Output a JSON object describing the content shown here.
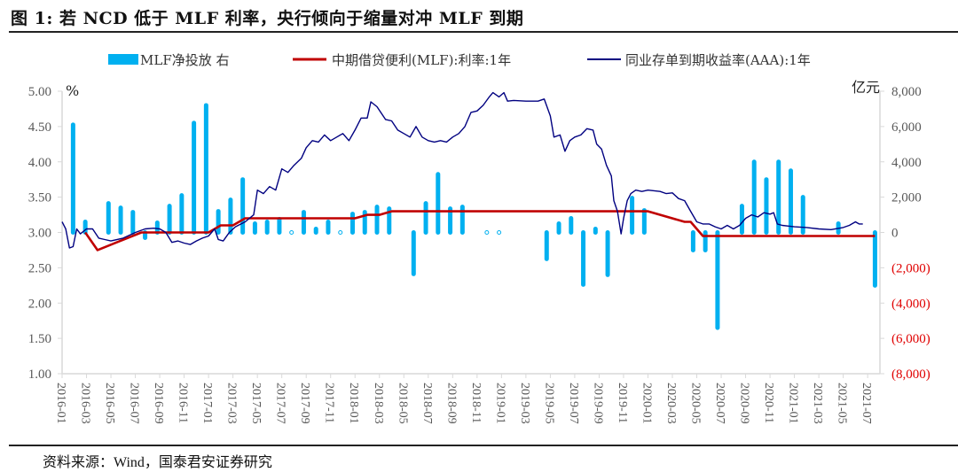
{
  "figure": {
    "title": "图 1: 若 NCD 低于 MLF 利率，央行倾向于缩量对冲 MLF 到期",
    "source": "资料来源：Wind，国泰君安证券研究"
  },
  "chart_data": {
    "type": "bar+line",
    "title": "若 NCD 低于 MLF 利率，央行倾向于缩量对冲 MLF 到期",
    "legend": [
      {
        "name": "MLF净投放 右",
        "type": "bar",
        "color": "#00b0f0"
      },
      {
        "name": "中期借贷便利(MLF):利率:1年",
        "type": "line",
        "color": "#c00000"
      },
      {
        "name": "同业存单到期收益率(AAA):1年",
        "type": "line",
        "color": "#000080"
      }
    ],
    "legend_position": "top",
    "y_left": {
      "label": "%",
      "range": [
        1.0,
        5.0
      ],
      "ticks": [
        "5.00",
        "4.50",
        "4.00",
        "3.50",
        "3.00",
        "2.50",
        "2.00",
        "1.50",
        "1.00"
      ]
    },
    "y_right": {
      "label": "亿元",
      "range": [
        -8000,
        8000
      ],
      "ticks": [
        "8,000",
        "6,000",
        "4,000",
        "2,000",
        "0",
        "(2,000)",
        "(4,000)",
        "(6,000)",
        "(8,000)"
      ],
      "negative_color": "#e00000"
    },
    "x_ticks": [
      "2016-01",
      "2016-03",
      "2016-05",
      "2016-07",
      "2016-09",
      "2016-11",
      "2017-01",
      "2017-03",
      "2017-05",
      "2017-07",
      "2017-09",
      "2017-11",
      "2018-01",
      "2018-03",
      "2018-05",
      "2018-07",
      "2018-09",
      "2018-11",
      "2019-01",
      "2019-03",
      "2019-05",
      "2019-07",
      "2019-09",
      "2019-11",
      "2020-01",
      "2020-03",
      "2020-05",
      "2020-07",
      "2020-09",
      "2020-11",
      "2021-01",
      "2021-03",
      "2021-05",
      "2021-07"
    ],
    "x_start": "2016-01",
    "series": [
      {
        "name": "MLF净投放 右",
        "axis": "right",
        "points": [
          [
            0.9,
            6100
          ],
          [
            1.9,
            600
          ],
          [
            3.8,
            1650
          ],
          [
            4.8,
            1400
          ],
          [
            5.8,
            1150
          ],
          [
            6.8,
            -300
          ],
          [
            7.8,
            550
          ],
          [
            8.8,
            1500
          ],
          [
            9.8,
            2100
          ],
          [
            10.8,
            6200
          ],
          [
            11.8,
            7200
          ],
          [
            12.8,
            1200
          ],
          [
            13.8,
            1850
          ],
          [
            14.8,
            3000
          ],
          [
            15.8,
            500
          ],
          [
            16.8,
            600
          ],
          [
            17.8,
            750
          ],
          [
            18.8,
            0
          ],
          [
            19.8,
            1150
          ],
          [
            20.8,
            200
          ],
          [
            21.8,
            600
          ],
          [
            22.8,
            0
          ],
          [
            23.8,
            1050
          ],
          [
            24.8,
            1150
          ],
          [
            25.8,
            1450
          ],
          [
            26.8,
            1350
          ],
          [
            28.8,
            -2350
          ],
          [
            29.8,
            1650
          ],
          [
            30.8,
            3300
          ],
          [
            31.8,
            1350
          ],
          [
            32.8,
            1450
          ],
          [
            34.8,
            0
          ],
          [
            35.8,
            0
          ],
          [
            39.7,
            -1500
          ],
          [
            40.7,
            500
          ],
          [
            41.7,
            800
          ],
          [
            42.7,
            -2950
          ],
          [
            43.7,
            200
          ],
          [
            44.7,
            -2400
          ],
          [
            46.7,
            1950
          ],
          [
            47.7,
            1250
          ],
          [
            51.7,
            -1000
          ],
          [
            52.7,
            -1000
          ],
          [
            53.7,
            -5400
          ],
          [
            55.7,
            1500
          ],
          [
            56.7,
            4000
          ],
          [
            57.7,
            3000
          ],
          [
            58.7,
            4000
          ],
          [
            59.7,
            3500
          ],
          [
            60.7,
            2000
          ],
          [
            63.6,
            500
          ],
          [
            66.6,
            -3000
          ]
        ]
      },
      {
        "name": "中期借贷便利(MLF):利率:1年",
        "axis": "left",
        "points": [
          [
            1.9,
            3.0
          ],
          [
            2.9,
            2.75
          ],
          [
            6.5,
            3.0
          ],
          [
            12.0,
            3.0
          ],
          [
            13.0,
            3.1
          ],
          [
            14.0,
            3.1
          ],
          [
            15.0,
            3.2
          ],
          [
            24.0,
            3.2
          ],
          [
            25.0,
            3.25
          ],
          [
            26.0,
            3.25
          ],
          [
            27.0,
            3.3
          ],
          [
            48.0,
            3.3
          ],
          [
            51.0,
            3.15
          ],
          [
            51.5,
            3.15
          ],
          [
            52.5,
            2.95
          ],
          [
            66.6,
            2.95
          ]
        ]
      },
      {
        "name": "同业存单到期收益率(AAA):1年",
        "axis": "left",
        "points": [
          [
            0,
            3.15
          ],
          [
            0.3,
            3.05
          ],
          [
            0.6,
            2.78
          ],
          [
            0.9,
            2.8
          ],
          [
            1.2,
            3.05
          ],
          [
            1.5,
            2.98
          ],
          [
            2.0,
            3.05
          ],
          [
            2.5,
            3.05
          ],
          [
            3.0,
            2.92
          ],
          [
            3.5,
            2.9
          ],
          [
            4.0,
            2.88
          ],
          [
            5.0,
            2.92
          ],
          [
            6.0,
            3.0
          ],
          [
            6.8,
            3.05
          ],
          [
            7.5,
            3.06
          ],
          [
            8.0,
            3.05
          ],
          [
            8.5,
            3.0
          ],
          [
            9.0,
            2.86
          ],
          [
            9.5,
            2.88
          ],
          [
            10.0,
            2.85
          ],
          [
            10.5,
            2.83
          ],
          [
            11.0,
            2.88
          ],
          [
            11.5,
            2.92
          ],
          [
            12.0,
            2.95
          ],
          [
            12.5,
            3.05
          ],
          [
            12.8,
            2.9
          ],
          [
            13.2,
            2.88
          ],
          [
            13.7,
            3.0
          ],
          [
            14.2,
            3.08
          ],
          [
            15.0,
            3.15
          ],
          [
            15.7,
            3.25
          ],
          [
            16.0,
            3.6
          ],
          [
            16.5,
            3.55
          ],
          [
            17.0,
            3.65
          ],
          [
            17.5,
            3.6
          ],
          [
            18.0,
            3.9
          ],
          [
            18.5,
            3.85
          ],
          [
            19.0,
            3.95
          ],
          [
            19.6,
            4.05
          ],
          [
            20.0,
            4.2
          ],
          [
            20.5,
            4.3
          ],
          [
            21.0,
            4.28
          ],
          [
            21.5,
            4.38
          ],
          [
            22.0,
            4.3
          ],
          [
            22.5,
            4.35
          ],
          [
            23.0,
            4.4
          ],
          [
            23.5,
            4.3
          ],
          [
            24.0,
            4.45
          ],
          [
            24.5,
            4.62
          ],
          [
            25.0,
            4.62
          ],
          [
            25.3,
            4.85
          ],
          [
            25.8,
            4.78
          ],
          [
            26.5,
            4.6
          ],
          [
            27.0,
            4.58
          ],
          [
            27.5,
            4.45
          ],
          [
            28.0,
            4.4
          ],
          [
            28.5,
            4.35
          ],
          [
            29.0,
            4.5
          ],
          [
            29.5,
            4.35
          ],
          [
            30.0,
            4.3
          ],
          [
            30.5,
            4.28
          ],
          [
            31.0,
            4.3
          ],
          [
            31.5,
            4.28
          ],
          [
            32.0,
            4.35
          ],
          [
            32.5,
            4.4
          ],
          [
            33.0,
            4.5
          ],
          [
            33.5,
            4.7
          ],
          [
            34.0,
            4.72
          ],
          [
            34.5,
            4.8
          ],
          [
            35.0,
            4.92
          ],
          [
            35.3,
            4.98
          ],
          [
            35.8,
            4.92
          ],
          [
            36.2,
            4.98
          ],
          [
            36.5,
            4.86
          ],
          [
            37.0,
            4.87
          ],
          [
            38.0,
            4.86
          ],
          [
            39.0,
            4.86
          ],
          [
            39.5,
            4.89
          ],
          [
            40.0,
            4.65
          ],
          [
            40.3,
            4.35
          ],
          [
            40.8,
            4.38
          ],
          [
            41.2,
            4.15
          ],
          [
            41.6,
            4.3
          ],
          [
            42.0,
            4.35
          ],
          [
            42.5,
            4.38
          ],
          [
            43.0,
            4.47
          ],
          [
            43.5,
            4.45
          ],
          [
            43.8,
            4.25
          ],
          [
            44.2,
            4.18
          ],
          [
            44.6,
            3.95
          ],
          [
            45.0,
            3.8
          ],
          [
            45.2,
            3.45
          ],
          [
            45.5,
            3.3
          ],
          [
            45.8,
            2.98
          ],
          [
            46.0,
            3.2
          ],
          [
            46.3,
            3.45
          ],
          [
            46.6,
            3.55
          ],
          [
            47.0,
            3.6
          ],
          [
            47.5,
            3.58
          ],
          [
            48.0,
            3.6
          ],
          [
            49.0,
            3.58
          ],
          [
            49.5,
            3.55
          ],
          [
            50.0,
            3.56
          ],
          [
            50.5,
            3.48
          ],
          [
            51.0,
            3.45
          ],
          [
            51.5,
            3.3
          ],
          [
            52.0,
            3.15
          ],
          [
            52.5,
            3.12
          ],
          [
            53.0,
            3.12
          ],
          [
            53.5,
            3.08
          ],
          [
            54.0,
            3.05
          ],
          [
            54.5,
            3.1
          ],
          [
            55.0,
            3.05
          ],
          [
            55.5,
            3.1
          ],
          [
            56.0,
            3.2
          ],
          [
            56.5,
            3.25
          ],
          [
            57.0,
            3.22
          ],
          [
            57.5,
            3.28
          ],
          [
            58.0,
            3.26
          ],
          [
            58.3,
            3.28
          ],
          [
            58.6,
            3.12
          ],
          [
            59.0,
            3.1
          ],
          [
            60.0,
            3.08
          ],
          [
            61.0,
            3.07
          ],
          [
            62.0,
            3.05
          ],
          [
            63.0,
            3.04
          ],
          [
            64.0,
            3.07
          ],
          [
            64.5,
            3.1
          ],
          [
            65.0,
            3.15
          ],
          [
            65.3,
            3.12
          ],
          [
            65.6,
            3.12
          ]
        ]
      }
    ]
  }
}
